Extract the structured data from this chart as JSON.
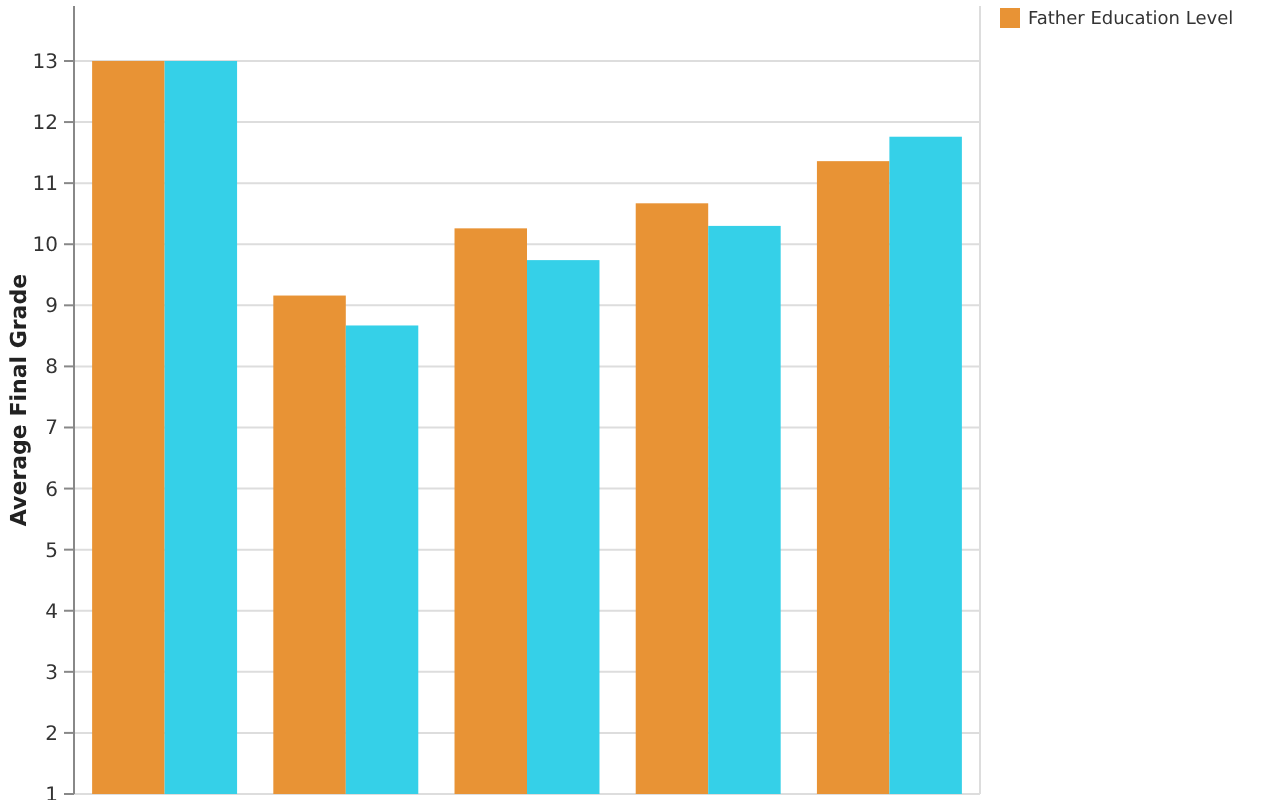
{
  "chart_data": {
    "type": "bar",
    "ylabel": "Average Final Grade",
    "categories": [
      null,
      null,
      null,
      null,
      null
    ],
    "series": [
      {
        "name": "Father Education Level",
        "color": "#e89335",
        "values": [
          13.0,
          9.16,
          10.26,
          10.67,
          11.36
        ]
      },
      {
        "color": "#35d0e8",
        "values": [
          13.0,
          8.67,
          9.74,
          10.3,
          11.76
        ]
      }
    ],
    "ylim": [
      1,
      13.9
    ],
    "yticks": [
      1,
      2,
      3,
      4,
      5,
      6,
      7,
      8,
      9,
      10,
      11,
      12,
      13
    ],
    "grid": "y",
    "legend": "top right"
  }
}
